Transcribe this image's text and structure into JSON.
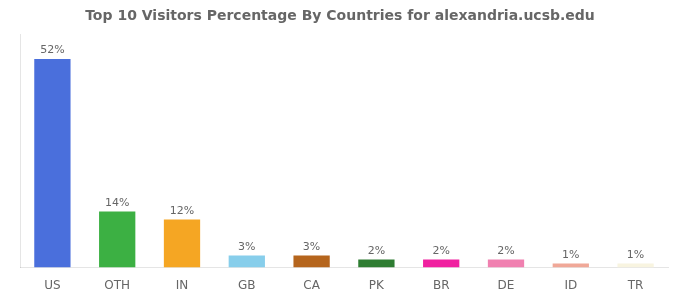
{
  "chart_data": {
    "type": "bar",
    "title": "Top 10 Visitors Percentage By Countries for alexandria.ucsb.edu",
    "categories": [
      "US",
      "OTH",
      "IN",
      "GB",
      "CA",
      "PK",
      "BR",
      "DE",
      "ID",
      "TR"
    ],
    "values": [
      52,
      14,
      12,
      3,
      3,
      2,
      2,
      2,
      1,
      1
    ],
    "value_labels": [
      "52%",
      "14%",
      "12%",
      "3%",
      "3%",
      "2%",
      "2%",
      "2%",
      "1%",
      "1%"
    ],
    "colors": [
      "#4a6fdc",
      "#3cb043",
      "#f5a623",
      "#87ceeb",
      "#b5651d",
      "#2e7d32",
      "#f020a0",
      "#f080b0",
      "#f0a898",
      "#f8f4e0"
    ],
    "ylim": [
      0,
      58
    ],
    "grid": false,
    "data_labels": true,
    "tick_labels": "x"
  }
}
